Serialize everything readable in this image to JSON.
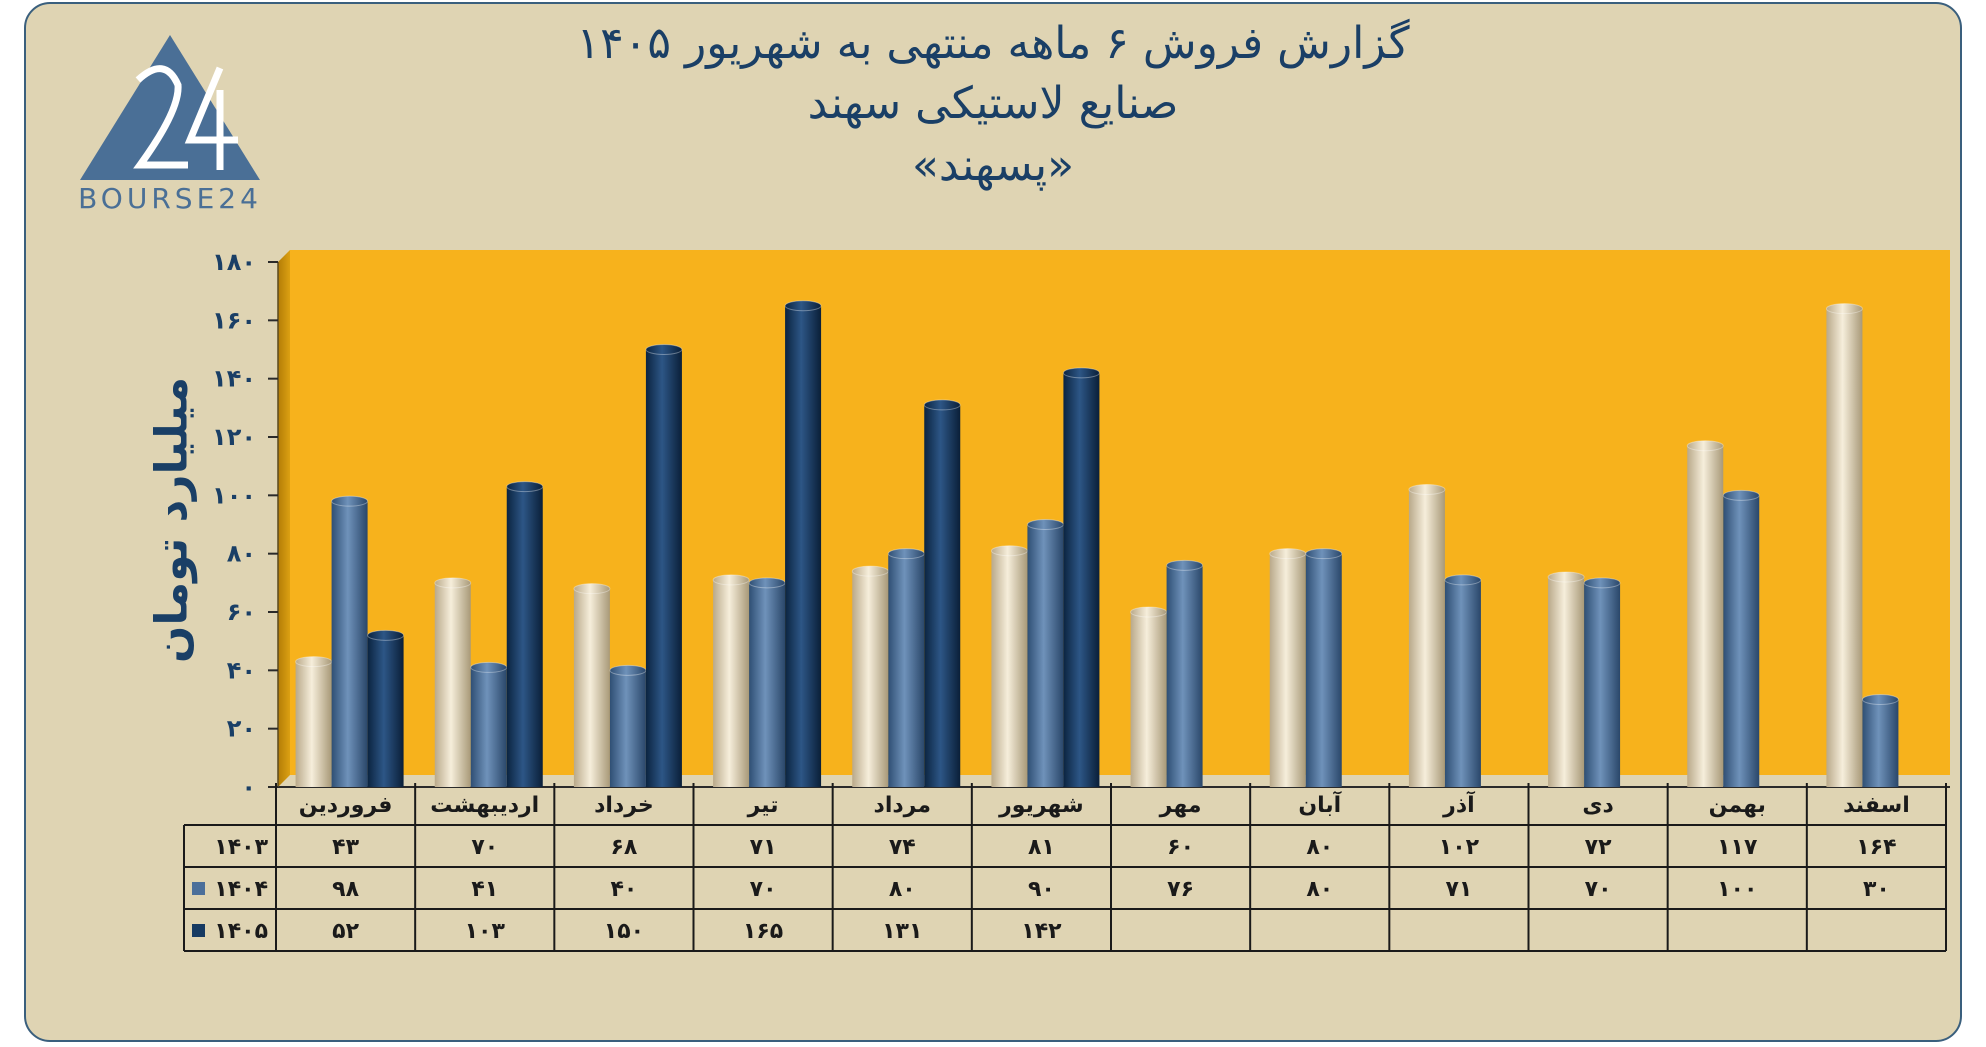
{
  "header": {
    "title_line1": "گزارش  فروش ۶ ماهه منتهی به شهریور ۱۴۰۵",
    "title_line2": "صنایع لاستیکی سهند",
    "title_line3": "«پسهند»"
  },
  "logo": {
    "text": "BOURSE24",
    "mark": "24"
  },
  "colors": {
    "s1403": "#e8dcbd",
    "s1404": "#4b6f9a",
    "s1405": "#163a62",
    "plot_bg": "#f7b21c"
  },
  "chart_data": {
    "type": "bar",
    "title": "گزارش  فروش ۶ ماهه منتهی به شهریور ۱۴۰۵",
    "ylabel": "میلیارد تومان",
    "ylim": [
      0,
      180
    ],
    "yticks": [
      0,
      20,
      40,
      60,
      80,
      100,
      120,
      140,
      160,
      180
    ],
    "ytick_labels": [
      "۰",
      "۲۰",
      "۴۰",
      "۶۰",
      "۸۰",
      "۱۰۰",
      "۱۲۰",
      "۱۴۰",
      "۱۶۰",
      "۱۸۰"
    ],
    "categories": [
      "فروردین",
      "اردیبهشت",
      "خرداد",
      "تیر",
      "مرداد",
      "شهریور",
      "مهر",
      "آبان",
      "آذر",
      "دی",
      "بهمن",
      "اسفند"
    ],
    "series": [
      {
        "name": "۱۴۰۳",
        "values": [
          43,
          70,
          68,
          71,
          74,
          81,
          60,
          80,
          102,
          72,
          117,
          164
        ],
        "labels": [
          "۴۳",
          "۷۰",
          "۶۸",
          "۷۱",
          "۷۴",
          "۸۱",
          "۶۰",
          "۸۰",
          "۱۰۲",
          "۷۲",
          "۱۱۷",
          "۱۶۴"
        ]
      },
      {
        "name": "۱۴۰۴",
        "values": [
          98,
          41,
          40,
          70,
          80,
          90,
          76,
          80,
          71,
          70,
          100,
          30
        ],
        "labels": [
          "۹۸",
          "۴۱",
          "۴۰",
          "۷۰",
          "۸۰",
          "۹۰",
          "۷۶",
          "۸۰",
          "۷۱",
          "۷۰",
          "۱۰۰",
          "۳۰"
        ]
      },
      {
        "name": "۱۴۰۵",
        "values": [
          52,
          103,
          150,
          165,
          131,
          142,
          null,
          null,
          null,
          null,
          null,
          null
        ],
        "labels": [
          "۵۲",
          "۱۰۳",
          "۱۵۰",
          "۱۶۵",
          "۱۳۱",
          "۱۴۲",
          "",
          "",
          "",
          "",
          "",
          ""
        ]
      }
    ],
    "grid": false,
    "legend": "table-left"
  }
}
